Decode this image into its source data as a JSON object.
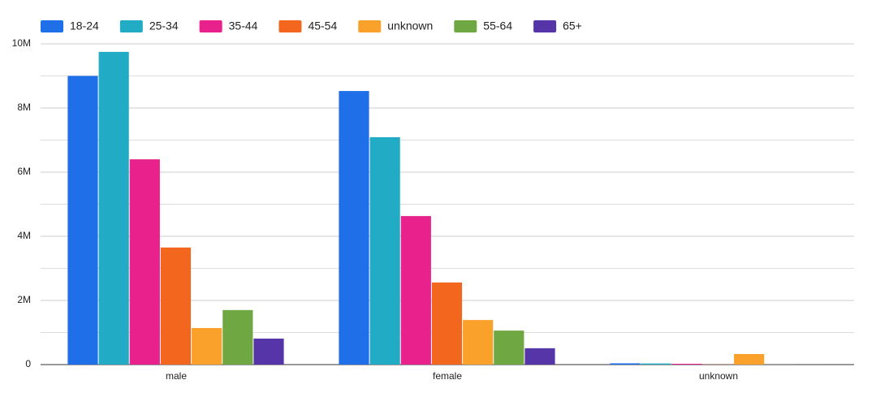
{
  "chart_data": {
    "type": "bar",
    "categories": [
      "male",
      "female",
      "unknown"
    ],
    "series": [
      {
        "name": "18-24",
        "color": "#1f6fe8",
        "values": [
          9000000,
          8530000,
          40000
        ]
      },
      {
        "name": "25-34",
        "color": "#22abc4",
        "values": [
          9750000,
          7090000,
          35000
        ]
      },
      {
        "name": "35-44",
        "color": "#e8218c",
        "values": [
          6400000,
          4630000,
          25000
        ]
      },
      {
        "name": "45-54",
        "color": "#f2661d",
        "values": [
          3650000,
          2560000,
          5000
        ]
      },
      {
        "name": "unknown",
        "color": "#f9a12a",
        "values": [
          1140000,
          1390000,
          330000
        ]
      },
      {
        "name": "55-64",
        "color": "#6fa843",
        "values": [
          1700000,
          1060000,
          2000
        ]
      },
      {
        "name": "65+",
        "color": "#5635a9",
        "values": [
          810000,
          510000,
          1000
        ]
      }
    ],
    "ylim": [
      0,
      10000000
    ],
    "yticks": [
      0,
      {
        "value": 2000000,
        "label": "2M"
      },
      {
        "value": 4000000,
        "label": "4M"
      },
      {
        "value": 6000000,
        "label": "6M"
      },
      {
        "value": 8000000,
        "label": "8M"
      },
      {
        "value": 10000000,
        "label": "10M"
      }
    ],
    "minor_yticks": [
      1000000,
      3000000,
      5000000,
      7000000,
      9000000
    ],
    "grid": true,
    "legend": "top"
  }
}
